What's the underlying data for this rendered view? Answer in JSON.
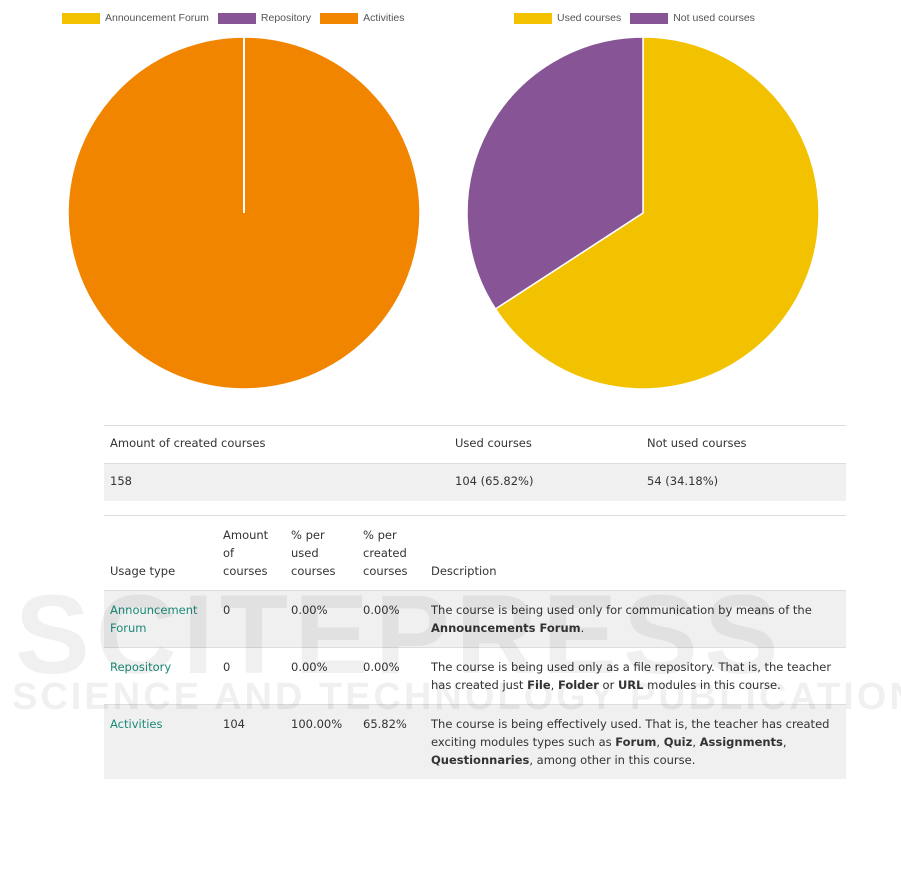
{
  "chart_data": [
    {
      "type": "pie",
      "legend_position": "top",
      "legend": [
        "Announcement Forum",
        "Repository",
        "Activities"
      ],
      "values": [
        0,
        0,
        104
      ],
      "colors": [
        "#f2c200",
        "#875495",
        "#f28500"
      ]
    },
    {
      "type": "pie",
      "legend_position": "top",
      "legend": [
        "Used courses",
        "Not used courses"
      ],
      "values": [
        104,
        54
      ],
      "colors": [
        "#f2c200",
        "#875495"
      ]
    }
  ],
  "summary_table": {
    "headers": [
      "Amount of created courses",
      "Used courses",
      "Not used courses"
    ],
    "row": [
      "158",
      "104 (65.82%)",
      "54 (34.18%)"
    ]
  },
  "usage_table": {
    "headers": [
      "Usage type",
      "Amount of courses",
      "% per used courses",
      "% per created courses",
      "Description"
    ],
    "rows": [
      {
        "type": "Announcement Forum",
        "amount": "0",
        "pct_used": "0.00%",
        "pct_created": "0.00%",
        "desc": [
          "The course is being used only for communication by means of the ",
          {
            "b": "Announcements Forum"
          },
          "."
        ]
      },
      {
        "type": "Repository",
        "amount": "0",
        "pct_used": "0.00%",
        "pct_created": "0.00%",
        "desc": [
          "The course is being used only as a file repository. That is, the teacher has created just ",
          {
            "b": "File"
          },
          ", ",
          {
            "b": "Folder"
          },
          " or ",
          {
            "b": "URL"
          },
          " modules in this course."
        ]
      },
      {
        "type": "Activities",
        "amount": "104",
        "pct_used": "100.00%",
        "pct_created": "65.82%",
        "desc": [
          "The course is being effectively used. That is, the teacher has created exciting modules types such as ",
          {
            "b": "Forum"
          },
          ", ",
          {
            "b": "Quiz"
          },
          ", ",
          {
            "b": "Assignments"
          },
          ", ",
          {
            "b": "Questionnaries"
          },
          ", among other in this course."
        ]
      }
    ]
  },
  "watermark": [
    "SCITEPRESS",
    "SCIENCE AND TECHNOLOGY PUBLICATIONS"
  ]
}
